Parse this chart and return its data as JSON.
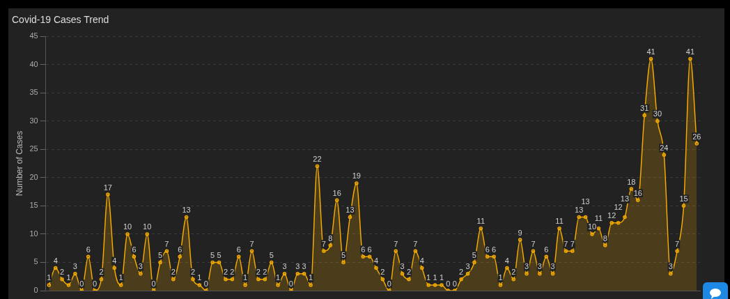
{
  "chart_data": {
    "type": "area",
    "title": "Covid-19 Cases Trend",
    "ylabel": "Number of Cases",
    "categories": [
      null,
      null,
      null,
      null,
      null,
      null,
      null,
      null,
      null,
      null,
      null,
      null,
      null,
      null,
      null,
      null,
      null,
      null,
      null,
      null,
      null,
      null,
      null,
      null,
      null,
      null,
      null,
      null,
      null,
      null,
      null,
      null,
      null,
      null,
      null,
      null,
      null,
      null,
      null,
      null,
      null,
      null,
      null,
      null,
      null,
      null,
      null,
      null,
      null,
      null,
      null,
      null,
      null,
      null,
      null,
      null,
      null,
      null,
      null,
      null,
      null,
      null,
      null,
      null,
      null,
      null,
      null,
      null,
      null,
      null,
      null,
      null,
      null,
      null,
      null,
      null,
      null,
      null,
      null,
      null,
      null,
      null,
      null,
      null,
      null,
      null,
      null,
      null,
      null,
      null,
      null,
      null,
      null,
      null,
      null,
      null,
      null,
      null,
      null,
      null
    ],
    "series": [
      {
        "color": "#f2a900",
        "values": [
          1,
          4,
          2,
          1,
          3,
          0,
          6,
          0,
          2,
          17,
          4,
          1,
          10,
          6,
          3,
          10,
          0,
          5,
          7,
          2,
          6,
          13,
          2,
          1,
          0,
          5,
          5,
          2,
          2,
          6,
          1,
          7,
          2,
          2,
          5,
          1,
          3,
          0,
          3,
          3,
          1,
          22,
          7,
          8,
          16,
          5,
          13,
          19,
          6,
          6,
          4,
          2,
          0,
          7,
          3,
          2,
          7,
          4,
          1,
          1,
          1,
          0,
          0,
          2,
          3,
          5,
          11,
          6,
          6,
          1,
          4,
          2,
          9,
          3,
          7,
          3,
          6,
          3,
          11,
          7,
          7,
          13,
          13,
          10,
          11,
          8,
          12,
          12,
          13,
          18,
          16,
          31,
          41,
          30,
          24,
          3,
          7,
          15,
          41,
          26
        ]
      }
    ],
    "ylim": [
      0,
      45
    ],
    "yticks": [
      0,
      5,
      10,
      15,
      20,
      25,
      30,
      35,
      40,
      45
    ],
    "grid": "y",
    "marker": "circle",
    "data_labels": true,
    "tick_labels": "y"
  }
}
